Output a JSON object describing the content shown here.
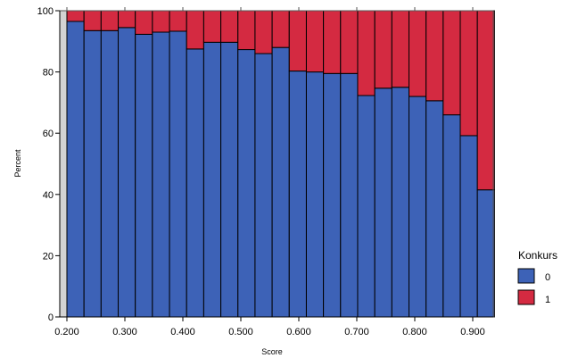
{
  "chart_data": {
    "type": "bar",
    "stacked": true,
    "percent": true,
    "xlabel": "Score",
    "ylabel": "Percent",
    "xlim": [
      0.2,
      0.93
    ],
    "ylim": [
      0,
      100
    ],
    "x_ticks": [
      "0.200",
      "0.300",
      "0.400",
      "0.500",
      "0.600",
      "0.700",
      "0.800",
      "0.900"
    ],
    "x_tick_values": [
      0.2,
      0.3,
      0.4,
      0.5,
      0.6,
      0.7,
      0.8,
      0.9
    ],
    "y_ticks": [
      "0",
      "20",
      "40",
      "60",
      "80",
      "100"
    ],
    "y_tick_values": [
      0,
      20,
      40,
      60,
      80,
      100
    ],
    "bin_width": 0.0295,
    "bin_starts": [
      0.2,
      0.2295,
      0.259,
      0.2885,
      0.318,
      0.3475,
      0.377,
      0.4065,
      0.436,
      0.4655,
      0.495,
      0.5245,
      0.554,
      0.5835,
      0.613,
      0.6425,
      0.672,
      0.7015,
      0.731,
      0.7605,
      0.79,
      0.8195,
      0.849,
      0.8785,
      0.908
    ],
    "legend": {
      "title": "Konkurs",
      "position": "right"
    },
    "grid": false,
    "series": [
      {
        "name": "0",
        "color": "#3d62b7",
        "values": [
          96.5,
          93.5,
          93.5,
          94.5,
          92.3,
          93.0,
          93.3,
          87.5,
          89.7,
          89.7,
          87.3,
          86.0,
          88.0,
          80.3,
          80.0,
          79.5,
          79.5,
          72.3,
          74.7,
          75.0,
          72.0,
          70.6,
          66.0,
          59.2,
          41.5
        ]
      },
      {
        "name": "1",
        "color": "#d42a41",
        "values": [
          3.5,
          6.5,
          6.5,
          5.5,
          7.7,
          7.0,
          6.7,
          12.5,
          10.3,
          10.3,
          12.7,
          14.0,
          12.0,
          19.7,
          20.0,
          20.5,
          20.5,
          27.7,
          25.3,
          25.0,
          28.0,
          29.4,
          34.0,
          40.8,
          58.5
        ]
      }
    ],
    "colors": {
      "plot_background": "#d3d3d3",
      "axis": "#000000"
    }
  }
}
